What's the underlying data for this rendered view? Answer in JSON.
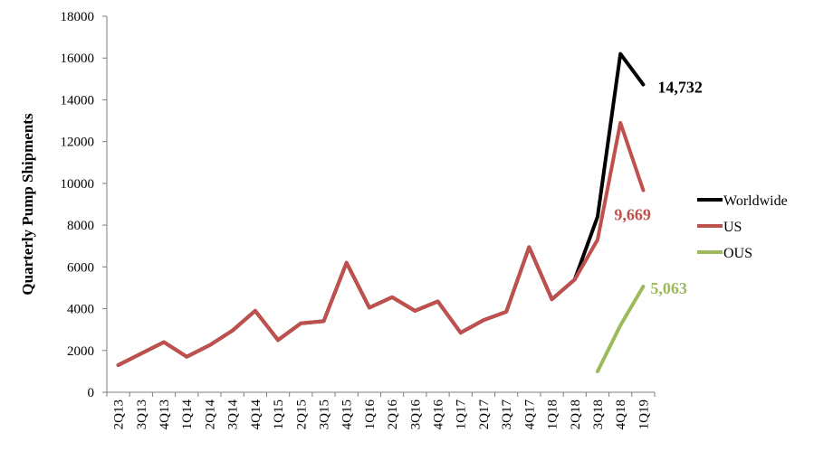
{
  "chart_data": {
    "type": "line",
    "ylabel": "Quarterly Pump Shipments",
    "xlabel": "",
    "ylim": [
      0,
      18000
    ],
    "yticks": [
      0,
      2000,
      4000,
      6000,
      8000,
      10000,
      12000,
      14000,
      16000,
      18000
    ],
    "grid": false,
    "legend_position": "right",
    "categories": [
      "2Q13",
      "3Q13",
      "4Q13",
      "1Q14",
      "2Q14",
      "3Q14",
      "4Q14",
      "1Q15",
      "2Q15",
      "3Q15",
      "4Q15",
      "1Q16",
      "2Q16",
      "3Q16",
      "4Q16",
      "1Q17",
      "2Q17",
      "3Q17",
      "4Q17",
      "1Q18",
      "2Q18",
      "3Q18",
      "4Q18",
      "1Q19"
    ],
    "series": [
      {
        "name": "Worldwide",
        "color": "#000000",
        "values": [
          1300,
          1850,
          2400,
          1700,
          2250,
          2950,
          3900,
          2500,
          3300,
          3400,
          6200,
          4050,
          4550,
          3900,
          4350,
          2850,
          3450,
          3850,
          6950,
          4450,
          5400,
          8400,
          16200,
          14732
        ]
      },
      {
        "name": "US",
        "color": "#c0504d",
        "values": [
          1300,
          1850,
          2400,
          1700,
          2250,
          2950,
          3900,
          2500,
          3300,
          3400,
          6200,
          4050,
          4550,
          3900,
          4350,
          2850,
          3450,
          3850,
          6950,
          4450,
          5400,
          7300,
          12900,
          9669
        ]
      },
      {
        "name": "OUS",
        "color": "#9bbb59",
        "values": [
          null,
          null,
          null,
          null,
          null,
          null,
          null,
          null,
          null,
          null,
          null,
          null,
          null,
          null,
          null,
          null,
          null,
          null,
          null,
          null,
          null,
          1000,
          3200,
          5063
        ]
      }
    ],
    "annotations": [
      {
        "series": "Worldwide",
        "text": "14,732",
        "color": "#000000"
      },
      {
        "series": "US",
        "text": "9,669",
        "color": "#c0504d"
      },
      {
        "series": "OUS",
        "text": "5,063",
        "color": "#9bbb59"
      }
    ]
  }
}
